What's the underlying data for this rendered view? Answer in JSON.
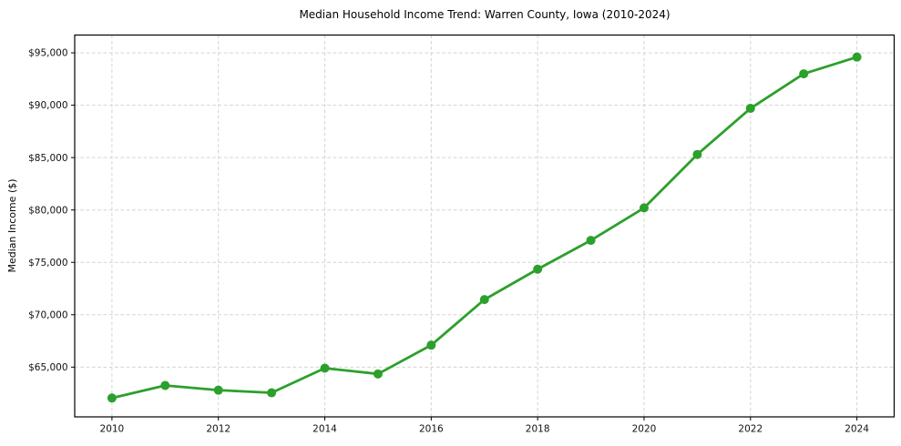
{
  "chart_data": {
    "type": "line",
    "title": "Median Household Income Trend: Warren County, Iowa (2010-2024)",
    "xlabel": "",
    "ylabel": "Median Income ($)",
    "x": [
      2010,
      2011,
      2012,
      2013,
      2014,
      2015,
      2016,
      2017,
      2018,
      2019,
      2020,
      2021,
      2022,
      2023,
      2024
    ],
    "values": [
      62050,
      63250,
      62800,
      62550,
      64900,
      64350,
      67100,
      71450,
      74350,
      77100,
      80200,
      85300,
      89700,
      93000,
      94600
    ],
    "series_name": "Median Household Income",
    "xlim": [
      2009.3,
      2024.7
    ],
    "ylim": [
      60250,
      96700
    ],
    "x_major_ticks": [
      2010,
      2012,
      2014,
      2016,
      2018,
      2020,
      2022,
      2024
    ],
    "y_ticks": [
      65000,
      70000,
      75000,
      80000,
      85000,
      90000,
      95000
    ],
    "y_tick_prefix": "$",
    "grid": true,
    "legend": "none",
    "line_color": "#2ca02c",
    "marker": "circle",
    "grid_color": "#d3d3d3",
    "frame_color": "#000000",
    "tick_label_color": "#111111",
    "background_color": "#ffffff"
  }
}
